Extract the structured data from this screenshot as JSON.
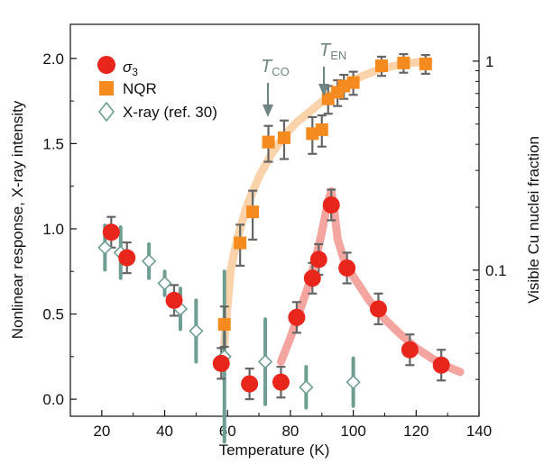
{
  "chart_data": {
    "type": "scatter",
    "title": "",
    "xlabel": "Temperature (K)",
    "ylabel": "Nonlinear response, X-ray intensity",
    "y2label": "Visible Cu nuclei fraction",
    "xlim": [
      10,
      140
    ],
    "ylim": [
      -0.1,
      2.2
    ],
    "y2lim_log": [
      0.02,
      1.5
    ],
    "xticks": [
      "20",
      "40",
      "60",
      "80",
      "100",
      "120",
      "140"
    ],
    "yticks": [
      "0.0",
      "0.5",
      "1.0",
      "1.5",
      "2.0"
    ],
    "y2ticks": [
      "0.1",
      "1"
    ],
    "grid": false,
    "legend_position": "top-left",
    "colors": {
      "sigma3": "#e8261c",
      "nqr": "#f58a1e",
      "xray": "#6e9e92",
      "errorbar": "#666666",
      "sigma3_fit": "#f4a5a0",
      "nqr_fit": "#fbd3ab",
      "annotation": "#6f8583"
    },
    "series": [
      {
        "name": "σ3",
        "marker": "circle",
        "points": [
          {
            "x": 23,
            "y": 0.98,
            "err": 0.09
          },
          {
            "x": 28,
            "y": 0.83,
            "err": 0.09
          },
          {
            "x": 43,
            "y": 0.58,
            "err": 0.09
          },
          {
            "x": 58,
            "y": 0.21,
            "err": 0.09
          },
          {
            "x": 67,
            "y": 0.09,
            "err": 0.09
          },
          {
            "x": 77,
            "y": 0.1,
            "err": 0.09
          },
          {
            "x": 82,
            "y": 0.48,
            "err": 0.09
          },
          {
            "x": 87,
            "y": 0.71,
            "err": 0.09
          },
          {
            "x": 89,
            "y": 0.82,
            "err": 0.09
          },
          {
            "x": 93,
            "y": 1.14,
            "err": 0.09
          },
          {
            "x": 98,
            "y": 0.77,
            "err": 0.09
          },
          {
            "x": 108,
            "y": 0.53,
            "err": 0.09
          },
          {
            "x": 118,
            "y": 0.29,
            "err": 0.09
          },
          {
            "x": 128,
            "y": 0.2,
            "err": 0.09
          }
        ]
      },
      {
        "name": "NQR",
        "marker": "square",
        "axis": "right-log",
        "points": [
          {
            "x": 59,
            "y": 0.055,
            "err_lo": 0.012,
            "err_hi": 0.012
          },
          {
            "x": 64,
            "y": 0.135,
            "err_lo": 0.03,
            "err_hi": 0.03
          },
          {
            "x": 68,
            "y": 0.19,
            "err_lo": 0.05,
            "err_hi": 0.05
          },
          {
            "x": 73,
            "y": 0.41,
            "err_lo": 0.08,
            "err_hi": 0.08
          },
          {
            "x": 78,
            "y": 0.43,
            "err_lo": 0.09,
            "err_hi": 0.09
          },
          {
            "x": 87,
            "y": 0.45,
            "err_lo": 0.09,
            "err_hi": 0.09
          },
          {
            "x": 90,
            "y": 0.47,
            "err_lo": 0.08,
            "err_hi": 0.08
          },
          {
            "x": 92,
            "y": 0.66,
            "err_lo": 0.1,
            "err_hi": 0.1
          },
          {
            "x": 95,
            "y": 0.71,
            "err_lo": 0.1,
            "err_hi": 0.1
          },
          {
            "x": 97,
            "y": 0.76,
            "err_lo": 0.1,
            "err_hi": 0.1
          },
          {
            "x": 100,
            "y": 0.79,
            "err_lo": 0.1,
            "err_hi": 0.1
          },
          {
            "x": 109,
            "y": 0.95,
            "err_lo": 0.1,
            "err_hi": 0.1
          },
          {
            "x": 116,
            "y": 0.98,
            "err_lo": 0.1,
            "err_hi": 0.1
          },
          {
            "x": 123,
            "y": 0.97,
            "err_lo": 0.1,
            "err_hi": 0.1
          }
        ]
      },
      {
        "name": "X-ray (ref. 30)",
        "marker": "open-diamond",
        "points": [
          {
            "x": 21,
            "y": 0.89,
            "err": 0.13
          },
          {
            "x": 26,
            "y": 0.86,
            "err": 0.15
          },
          {
            "x": 35,
            "y": 0.81,
            "err": 0.1
          },
          {
            "x": 40,
            "y": 0.68,
            "err": 0.07
          },
          {
            "x": 45,
            "y": 0.53,
            "err": 0.12
          },
          {
            "x": 50,
            "y": 0.4,
            "err": 0.18
          },
          {
            "x": 59,
            "y": 0.25,
            "err": 0.5
          },
          {
            "x": 72,
            "y": 0.22,
            "err": 0.25
          },
          {
            "x": 85,
            "y": 0.07,
            "err": 0.12
          },
          {
            "x": 100,
            "y": 0.1,
            "err": 0.14
          }
        ]
      }
    ],
    "sigma3_fit": [
      [
        77,
        0.22
      ],
      [
        80,
        0.36
      ],
      [
        83,
        0.52
      ],
      [
        86,
        0.68
      ],
      [
        88,
        0.82
      ],
      [
        90,
        0.98
      ],
      [
        92,
        1.16
      ],
      [
        93,
        1.22
      ],
      [
        94,
        1.1
      ],
      [
        95,
        0.94
      ],
      [
        97,
        0.82
      ],
      [
        100,
        0.72
      ],
      [
        105,
        0.58
      ],
      [
        110,
        0.47
      ],
      [
        115,
        0.38
      ],
      [
        120,
        0.3
      ],
      [
        125,
        0.24
      ],
      [
        130,
        0.19
      ],
      [
        134,
        0.16
      ]
    ],
    "nqr_fit": [
      [
        59,
        0.045
      ],
      [
        61,
        0.1
      ],
      [
        63,
        0.14
      ],
      [
        66,
        0.2
      ],
      [
        70,
        0.28
      ],
      [
        74,
        0.36
      ],
      [
        78,
        0.44
      ],
      [
        82,
        0.51
      ],
      [
        86,
        0.57
      ],
      [
        90,
        0.64
      ],
      [
        94,
        0.71
      ],
      [
        98,
        0.78
      ],
      [
        103,
        0.85
      ],
      [
        108,
        0.91
      ],
      [
        113,
        0.95
      ],
      [
        118,
        0.98
      ],
      [
        124,
        1.0
      ]
    ],
    "annotations": [
      {
        "base": "T",
        "sub": "CO",
        "x": 72
      },
      {
        "base": "T",
        "sub": "EN",
        "x": 90
      }
    ]
  }
}
